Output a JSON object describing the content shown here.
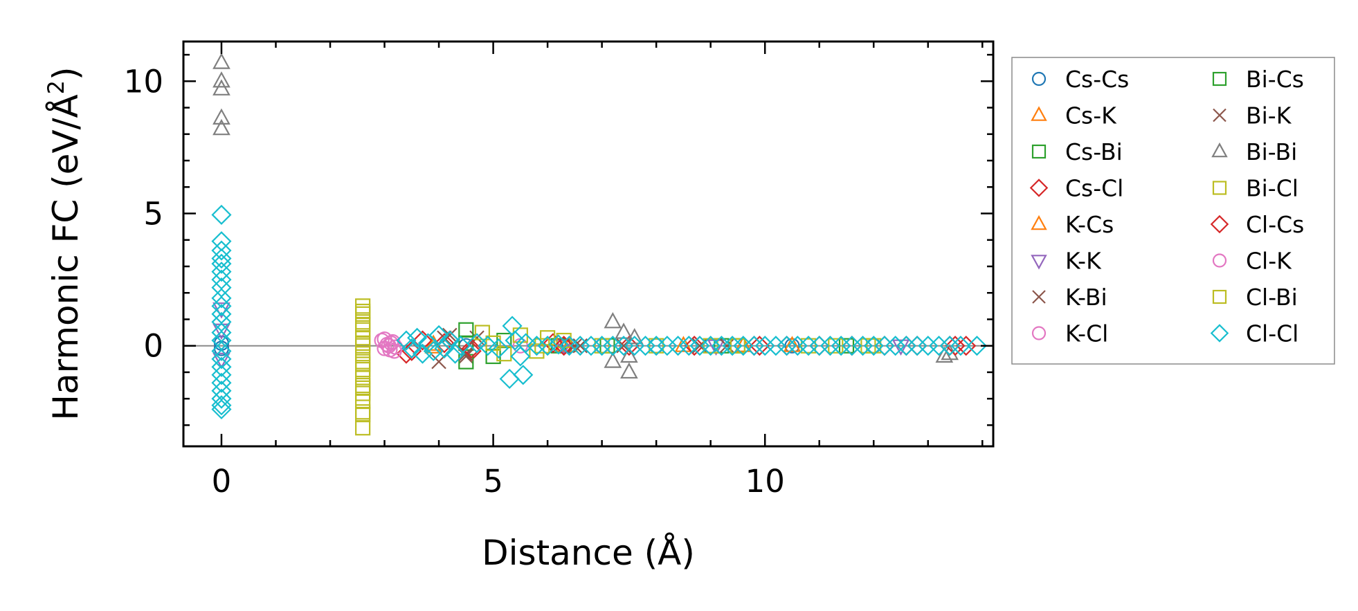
{
  "chart_data": {
    "type": "scatter",
    "title": "",
    "xlabel": "Distance (Å)",
    "ylabel_prefix": "Harmonic FC (eV/Å",
    "ylabel_sup": "2",
    "ylabel_suffix": ")",
    "xlim": [
      -0.7,
      14.2
    ],
    "ylim": [
      -3.8,
      11.5
    ],
    "xticks": [
      {
        "value": 0,
        "label": "0"
      },
      {
        "value": 5,
        "label": "5"
      },
      {
        "value": 10,
        "label": "10"
      }
    ],
    "yticks": [
      {
        "value": 0,
        "label": "0"
      },
      {
        "value": 5,
        "label": "5"
      },
      {
        "value": 10,
        "label": "10"
      }
    ],
    "x_minor_step": 1,
    "y_minor_step": 1,
    "zero_line": true,
    "grid": false,
    "legend_position": "outside-right",
    "series": [
      {
        "name": "Cs-Cs",
        "marker": "circle",
        "color": "#1f77b4",
        "points": [
          [
            0,
            0.1
          ],
          [
            0,
            -0.1
          ],
          [
            4.5,
            0.0
          ],
          [
            6.4,
            0.0
          ],
          [
            8.0,
            0.0
          ],
          [
            9.0,
            0.0
          ],
          [
            10.5,
            0.0
          ],
          [
            12.0,
            0.0
          ]
        ]
      },
      {
        "name": "Cs-K",
        "marker": "triangle-up",
        "color": "#ff7f0e",
        "points": [
          [
            3.9,
            0.05
          ],
          [
            6.3,
            0.0
          ],
          [
            8.5,
            0.0
          ],
          [
            10.5,
            0.0
          ]
        ]
      },
      {
        "name": "Cs-Bi",
        "marker": "square",
        "color": "#2ca02c",
        "points": [
          [
            4.5,
            0.1
          ],
          [
            6.2,
            0.0
          ],
          [
            9.2,
            0.0
          ],
          [
            11.5,
            0.0
          ]
        ]
      },
      {
        "name": "Cs-Cl",
        "marker": "diamond",
        "color": "#d62728",
        "points": [
          [
            3.4,
            -0.3
          ],
          [
            3.7,
            0.2
          ],
          [
            4.1,
            0.1
          ],
          [
            4.6,
            -0.2
          ],
          [
            6.1,
            0.1
          ],
          [
            7.5,
            0.0
          ],
          [
            8.7,
            0.0
          ],
          [
            9.8,
            0.0
          ],
          [
            10.4,
            0.0
          ],
          [
            11.0,
            0.0
          ],
          [
            11.6,
            0.0
          ],
          [
            12.2,
            0.0
          ],
          [
            12.6,
            0.0
          ],
          [
            13.4,
            0.0
          ],
          [
            13.7,
            0.0
          ]
        ]
      },
      {
        "name": "K-Cs",
        "marker": "triangle-up",
        "color": "#ff7f0e",
        "points": [
          [
            3.9,
            -0.05
          ],
          [
            6.4,
            0.0
          ],
          [
            9.6,
            0.0
          ]
        ]
      },
      {
        "name": "K-K",
        "marker": "triangle-down",
        "color": "#9467bd",
        "points": [
          [
            0,
            0.6
          ],
          [
            0,
            -0.5
          ],
          [
            0,
            1.4
          ],
          [
            6.3,
            0.0
          ],
          [
            9.1,
            0.0
          ],
          [
            12.5,
            0.0
          ]
        ]
      },
      {
        "name": "K-Bi",
        "marker": "x",
        "color": "#8c564b",
        "points": [
          [
            4.0,
            -0.6
          ],
          [
            4.2,
            0.4
          ],
          [
            4.5,
            -0.4
          ],
          [
            4.7,
            0.3
          ],
          [
            6.5,
            0.0
          ],
          [
            7.4,
            0.0
          ],
          [
            9.3,
            0.0
          ]
        ]
      },
      {
        "name": "K-Cl",
        "marker": "circle",
        "color": "#e377c2",
        "points": [
          [
            3.0,
            0.25
          ],
          [
            3.05,
            0.05
          ],
          [
            3.1,
            -0.15
          ],
          [
            3.15,
            0.15
          ],
          [
            3.2,
            -0.05
          ],
          [
            5.5,
            0.0
          ],
          [
            7.0,
            0.0
          ]
        ]
      },
      {
        "name": "Bi-Cs",
        "marker": "square",
        "color": "#2ca02c",
        "points": [
          [
            4.5,
            0.6
          ],
          [
            4.5,
            -0.6
          ],
          [
            5.0,
            -0.4
          ],
          [
            5.2,
            0.2
          ],
          [
            7.1,
            0.0
          ],
          [
            9.5,
            0.0
          ]
        ]
      },
      {
        "name": "Bi-K",
        "marker": "x",
        "color": "#8c564b",
        "points": [
          [
            4.1,
            0.3
          ],
          [
            4.5,
            -0.3
          ],
          [
            6.6,
            0.0
          ],
          [
            8.8,
            0.0
          ]
        ]
      },
      {
        "name": "Bi-Bi",
        "marker": "triangle-up",
        "color": "#7f7f7f",
        "points": [
          [
            0,
            10.7
          ],
          [
            0,
            10.0
          ],
          [
            0,
            9.7
          ],
          [
            0,
            8.6
          ],
          [
            0,
            8.2
          ],
          [
            7.2,
            0.9
          ],
          [
            7.2,
            -0.6
          ],
          [
            7.4,
            0.5
          ],
          [
            7.5,
            -1.0
          ],
          [
            7.5,
            -0.4
          ],
          [
            7.6,
            0.3
          ],
          [
            13.3,
            -0.4
          ],
          [
            13.4,
            -0.3
          ]
        ]
      },
      {
        "name": "Bi-Cl",
        "marker": "square",
        "color": "#bcbd22",
        "points": [
          [
            2.6,
            1.5
          ],
          [
            2.6,
            1.2
          ],
          [
            2.6,
            0.9
          ],
          [
            2.6,
            0.6
          ],
          [
            2.6,
            0.3
          ],
          [
            2.6,
            0.0
          ],
          [
            2.6,
            -0.3
          ],
          [
            2.6,
            -0.6
          ],
          [
            2.6,
            -0.9
          ],
          [
            2.6,
            -1.2
          ],
          [
            2.6,
            -1.5
          ],
          [
            2.6,
            -1.8
          ],
          [
            2.6,
            -2.1
          ],
          [
            2.6,
            -2.5
          ],
          [
            2.6,
            -3.1
          ],
          [
            4.8,
            0.5
          ],
          [
            5.2,
            -0.3
          ],
          [
            5.5,
            0.4
          ],
          [
            5.8,
            -0.2
          ],
          [
            6.0,
            0.3
          ],
          [
            6.3,
            0.2
          ],
          [
            7.0,
            0.0
          ],
          [
            8.0,
            0.0
          ],
          [
            9.5,
            0.0
          ],
          [
            10.8,
            0.0
          ],
          [
            11.3,
            0.0
          ],
          [
            12.0,
            0.0
          ]
        ]
      },
      {
        "name": "Cl-Cs",
        "marker": "diamond",
        "color": "#d62728",
        "points": [
          [
            3.5,
            -0.2
          ],
          [
            4.2,
            0.2
          ],
          [
            4.6,
            -0.1
          ],
          [
            6.3,
            0.0
          ],
          [
            9.9,
            0.0
          ],
          [
            12.8,
            0.0
          ],
          [
            13.5,
            0.0
          ]
        ]
      },
      {
        "name": "Cl-K",
        "marker": "circle",
        "color": "#e377c2",
        "points": [
          [
            2.95,
            0.2
          ],
          [
            3.0,
            -0.1
          ],
          [
            3.08,
            0.0
          ],
          [
            3.12,
            0.1
          ],
          [
            3.18,
            -0.2
          ]
        ]
      },
      {
        "name": "Cl-Bi",
        "marker": "square",
        "color": "#bcbd22",
        "points": [
          [
            2.6,
            1.3
          ],
          [
            2.6,
            0.8
          ],
          [
            2.6,
            0.1
          ],
          [
            2.6,
            -0.7
          ],
          [
            2.6,
            -1.6
          ],
          [
            2.6,
            -2.6
          ],
          [
            5.0,
            0.1
          ],
          [
            5.9,
            0.0
          ],
          [
            9.0,
            0.0
          ],
          [
            11.9,
            0.0
          ]
        ]
      },
      {
        "name": "Cl-Cl",
        "marker": "diamond",
        "color": "#17becf",
        "points": [
          [
            0,
            4.95
          ],
          [
            0,
            3.95
          ],
          [
            0,
            3.6
          ],
          [
            0,
            3.3
          ],
          [
            0,
            3.1
          ],
          [
            0,
            2.8
          ],
          [
            0,
            2.5
          ],
          [
            0,
            2.2
          ],
          [
            0,
            1.8
          ],
          [
            0,
            1.5
          ],
          [
            0,
            1.2
          ],
          [
            0,
            0.9
          ],
          [
            0,
            0.5
          ],
          [
            0,
            0.2
          ],
          [
            0,
            -0.2
          ],
          [
            0,
            -0.5
          ],
          [
            0,
            -0.8
          ],
          [
            0,
            -1.1
          ],
          [
            0,
            -1.4
          ],
          [
            0,
            -1.7
          ],
          [
            0,
            -2.0
          ],
          [
            0,
            -2.25
          ],
          [
            0,
            -2.4
          ],
          [
            3.4,
            0.2
          ],
          [
            3.5,
            -0.1
          ],
          [
            3.6,
            0.3
          ],
          [
            3.7,
            -0.3
          ],
          [
            3.8,
            0.1
          ],
          [
            3.9,
            -0.2
          ],
          [
            4.0,
            0.4
          ],
          [
            4.1,
            -0.1
          ],
          [
            4.2,
            0.2
          ],
          [
            4.3,
            -0.3
          ],
          [
            4.4,
            0.0
          ],
          [
            4.7,
            0.1
          ],
          [
            4.9,
            0.0
          ],
          [
            5.1,
            -0.1
          ],
          [
            5.3,
            -1.25
          ],
          [
            5.35,
            0.75
          ],
          [
            5.4,
            0.2
          ],
          [
            5.5,
            -0.4
          ],
          [
            5.55,
            -1.1
          ],
          [
            5.6,
            0.1
          ],
          [
            5.8,
            0.0
          ],
          [
            6.0,
            0.0
          ],
          [
            6.2,
            0.05
          ],
          [
            6.4,
            0.0
          ],
          [
            6.6,
            0.0
          ],
          [
            6.8,
            0.0
          ],
          [
            7.0,
            0.0
          ],
          [
            7.2,
            0.0
          ],
          [
            7.4,
            0.0
          ],
          [
            7.6,
            0.0
          ],
          [
            7.8,
            0.0
          ],
          [
            8.0,
            0.0
          ],
          [
            8.2,
            0.0
          ],
          [
            8.4,
            0.0
          ],
          [
            8.6,
            0.0
          ],
          [
            8.8,
            0.0
          ],
          [
            9.0,
            0.0
          ],
          [
            9.2,
            0.0
          ],
          [
            9.4,
            0.0
          ],
          [
            9.6,
            0.0
          ],
          [
            9.8,
            0.0
          ],
          [
            10.0,
            0.0
          ],
          [
            10.2,
            0.0
          ],
          [
            10.4,
            0.0
          ],
          [
            10.6,
            0.0
          ],
          [
            10.8,
            0.0
          ],
          [
            11.0,
            0.0
          ],
          [
            11.2,
            0.0
          ],
          [
            11.4,
            0.0
          ],
          [
            11.6,
            0.0
          ],
          [
            11.8,
            0.0
          ],
          [
            12.0,
            0.0
          ],
          [
            12.2,
            0.0
          ],
          [
            12.4,
            0.0
          ],
          [
            12.6,
            0.0
          ],
          [
            12.8,
            0.0
          ],
          [
            13.0,
            0.0
          ],
          [
            13.2,
            0.0
          ],
          [
            13.4,
            0.0
          ],
          [
            13.6,
            0.0
          ],
          [
            13.9,
            0.0
          ]
        ]
      }
    ]
  }
}
